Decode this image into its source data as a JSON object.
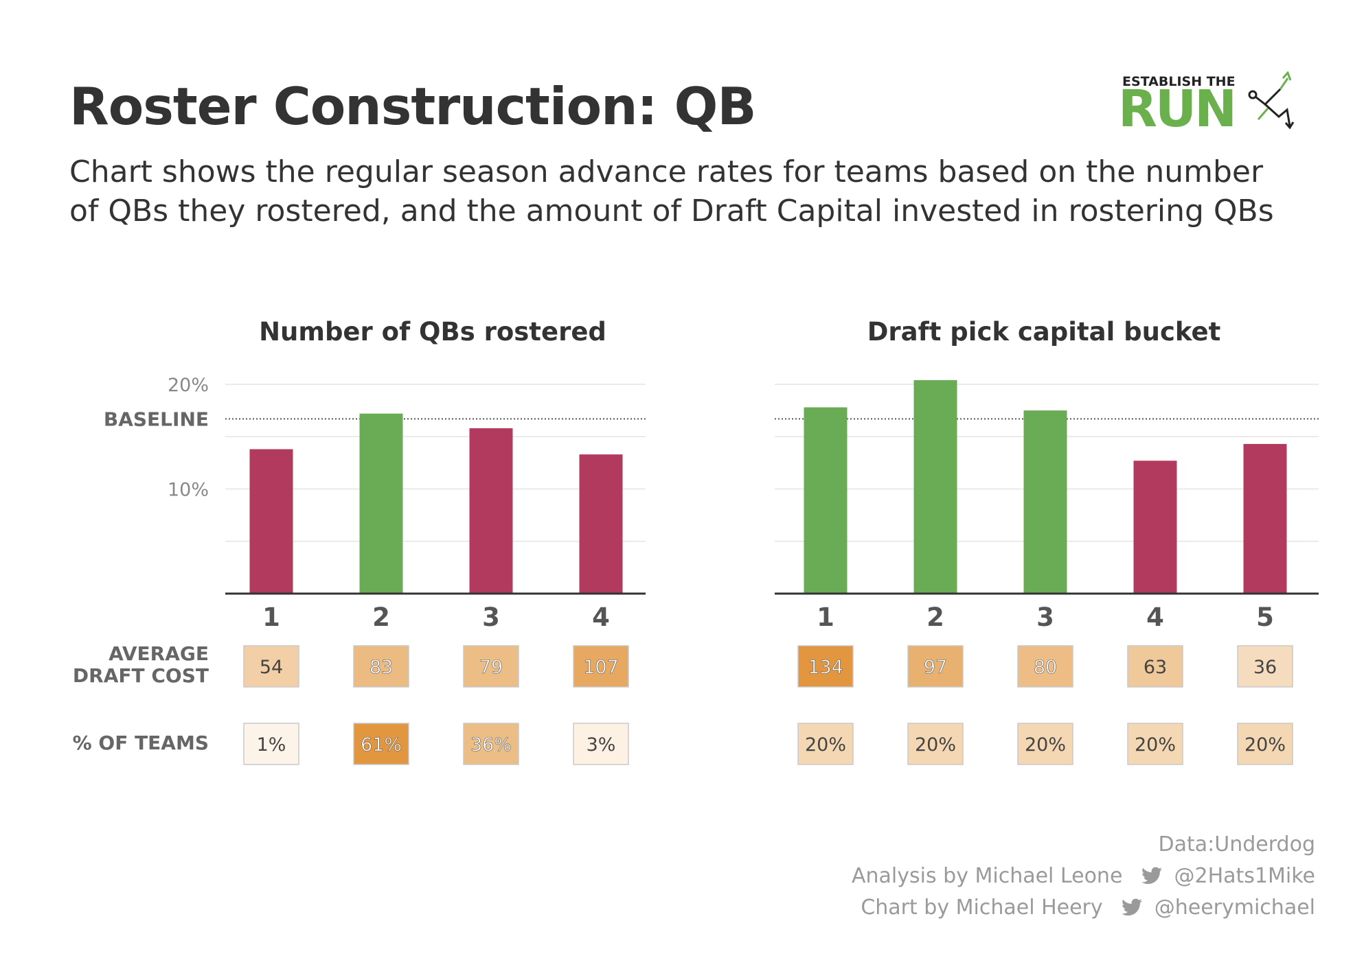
{
  "header": {
    "title": "Roster Construction: QB",
    "subtitle": "Chart shows the regular season advance rates for teams based on the number of QBs they rostered, and the amount of Draft Capital invested in rostering QBs"
  },
  "logo": {
    "top_text": "ESTABLISH THE",
    "main_text": "RUN",
    "color": "#6ab04c",
    "icon": "play-route-arrow-icon"
  },
  "colors": {
    "above_baseline": "#6aac56",
    "below_baseline": "#b23a5f",
    "cost_scale_low": "#fdf6ec",
    "cost_scale_high": "#e2963f"
  },
  "chart_data": [
    {
      "type": "bar",
      "title": "Number of QBs rostered",
      "categories": [
        "1",
        "2",
        "3",
        "4"
      ],
      "values": [
        13.8,
        17.2,
        15.8,
        13.3
      ],
      "baseline": 16.7,
      "y_tick_labels": [
        {
          "value": 20,
          "label": "20%"
        },
        {
          "value": 16.7,
          "label": "BASELINE"
        },
        {
          "value": 10,
          "label": "10%"
        }
      ],
      "ylim": [
        0,
        20
      ],
      "grid": true,
      "table_rows": [
        {
          "label": "AVERAGE DRAFT COST",
          "values": [
            "54",
            "83",
            "79",
            "107"
          ],
          "numeric": [
            54,
            83,
            79,
            107
          ]
        },
        {
          "label": "% OF TEAMS",
          "values": [
            "1%",
            "61%",
            "36%",
            "3%"
          ],
          "numeric": [
            1,
            61,
            36,
            3
          ]
        }
      ]
    },
    {
      "type": "bar",
      "title": "Draft pick capital bucket",
      "categories": [
        "1",
        "2",
        "3",
        "4",
        "5"
      ],
      "values": [
        17.8,
        20.4,
        17.5,
        12.7,
        14.3
      ],
      "baseline": 16.7,
      "ylim": [
        0,
        20
      ],
      "grid": true,
      "table_rows": [
        {
          "label": "AVERAGE DRAFT COST",
          "values": [
            "134",
            "97",
            "80",
            "63",
            "36"
          ],
          "numeric": [
            134,
            97,
            80,
            63,
            36
          ]
        },
        {
          "label": "% OF TEAMS",
          "values": [
            "20%",
            "20%",
            "20%",
            "20%",
            "20%"
          ],
          "numeric": [
            20,
            20,
            20,
            20,
            20
          ]
        }
      ]
    }
  ],
  "footer": {
    "data_source": "Data:Underdog",
    "analysis_by": "Analysis by Michael Leone",
    "analysis_handle": "@2Hats1Mike",
    "chart_by": "Chart by Michael Heery",
    "chart_handle": "@heerymichael",
    "social_icon": "twitter-bird-icon"
  }
}
